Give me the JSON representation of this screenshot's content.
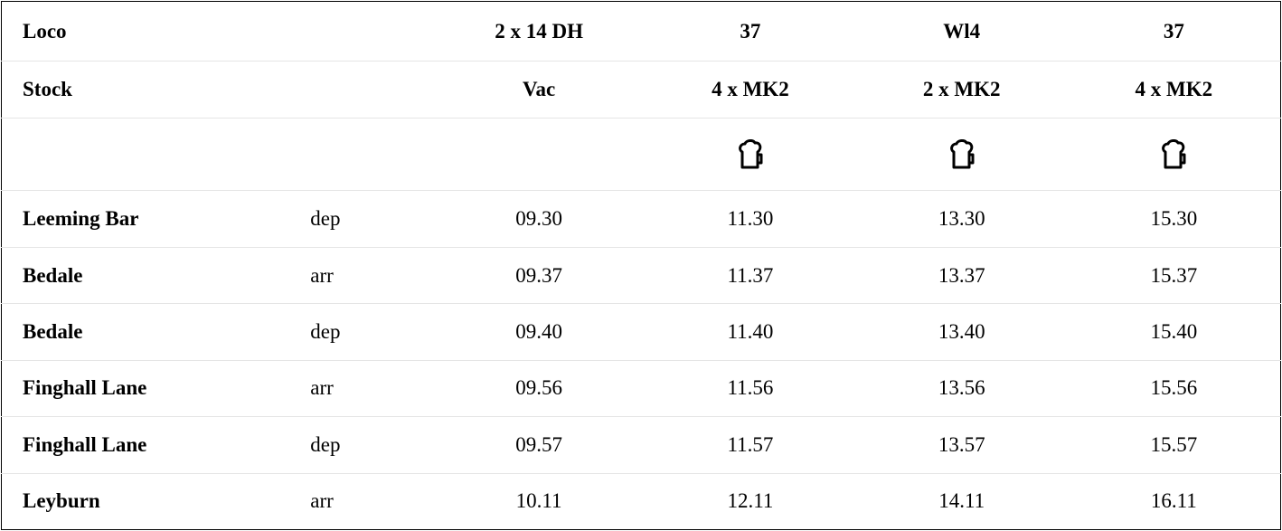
{
  "header_rows": {
    "loco": {
      "label": "Loco",
      "values": [
        "2 x 14 DH",
        "37",
        "Wl4",
        "37"
      ]
    },
    "stock": {
      "label": "Stock",
      "values": [
        "Vac",
        "4 x MK2",
        "2 x MK2",
        "4 x MK2"
      ]
    },
    "buffet_icons": [
      "",
      "beer-mug-icon",
      "beer-mug-icon",
      "beer-mug-icon"
    ]
  },
  "stops": [
    {
      "station": "Leeming Bar",
      "type": "dep",
      "times": [
        "09.30",
        "11.30",
        "13.30",
        "15.30"
      ]
    },
    {
      "station": "Bedale",
      "type": "arr",
      "times": [
        "09.37",
        "11.37",
        "13.37",
        "15.37"
      ]
    },
    {
      "station": "Bedale",
      "type": "dep",
      "times": [
        "09.40",
        "11.40",
        "13.40",
        "15.40"
      ]
    },
    {
      "station": "Finghall Lane",
      "type": "arr",
      "times": [
        "09.56",
        "11.56",
        "13.56",
        "15.56"
      ]
    },
    {
      "station": "Finghall Lane",
      "type": "dep",
      "times": [
        "09.57",
        "11.57",
        "13.57",
        "15.57"
      ]
    },
    {
      "station": "Leyburn",
      "type": "arr",
      "times": [
        "10.11",
        "12.11",
        "14.11",
        "16.11"
      ]
    }
  ]
}
